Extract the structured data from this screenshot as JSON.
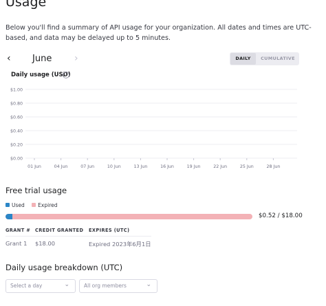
{
  "page": {
    "title": "Usage",
    "intro": "Below you'll find a summary of API usage for your organization. All dates and times are UTC-based, and data may be delayed up to 5 minutes."
  },
  "month_nav": {
    "prev_icon": "‹",
    "month": "June",
    "next_icon": "›"
  },
  "view_toggle": {
    "daily": "DAILY",
    "cumulative": "CUMULATIVE",
    "selected": "DAILY"
  },
  "chart_data": {
    "type": "bar",
    "title": "Daily usage (USD)",
    "ylabel": "",
    "xlabel": "",
    "ylim": [
      0,
      1
    ],
    "y_ticks": [
      "$1.00",
      "$0.80",
      "$0.60",
      "$0.40",
      "$0.20",
      "$0.00"
    ],
    "x_ticks": [
      "01 Jun",
      "04 Jun",
      "07 Jun",
      "10 Jun",
      "13 Jun",
      "16 Jun",
      "19 Jun",
      "22 Jun",
      "25 Jun",
      "28 Jun"
    ],
    "series": [
      {
        "values": []
      }
    ],
    "grid": true
  },
  "free_trial": {
    "title": "Free trial usage",
    "legend": [
      {
        "label": "Used",
        "color": "#2b86c7"
      },
      {
        "label": "Expired",
        "color": "#f3b2b6"
      }
    ],
    "used": 0.52,
    "total": 18.0,
    "value_text": "$0.52 / $18.00",
    "table": {
      "headers": [
        "GRANT #",
        "CREDIT GRANTED",
        "EXPIRES (UTC)"
      ],
      "rows": [
        [
          "Grant 1",
          "$18.00",
          "Expired 2023年6月1日"
        ]
      ]
    }
  },
  "breakdown": {
    "title": "Daily usage breakdown (UTC)",
    "day_select": {
      "placeholder": "Select a day",
      "icon": "chevron-down-icon"
    },
    "member_select": {
      "value": "All org members",
      "icon": "chevron-down-icon"
    }
  },
  "colors": {
    "used": "#2b86c7",
    "expired": "#f3b2b6",
    "grid": "#ececf1"
  }
}
